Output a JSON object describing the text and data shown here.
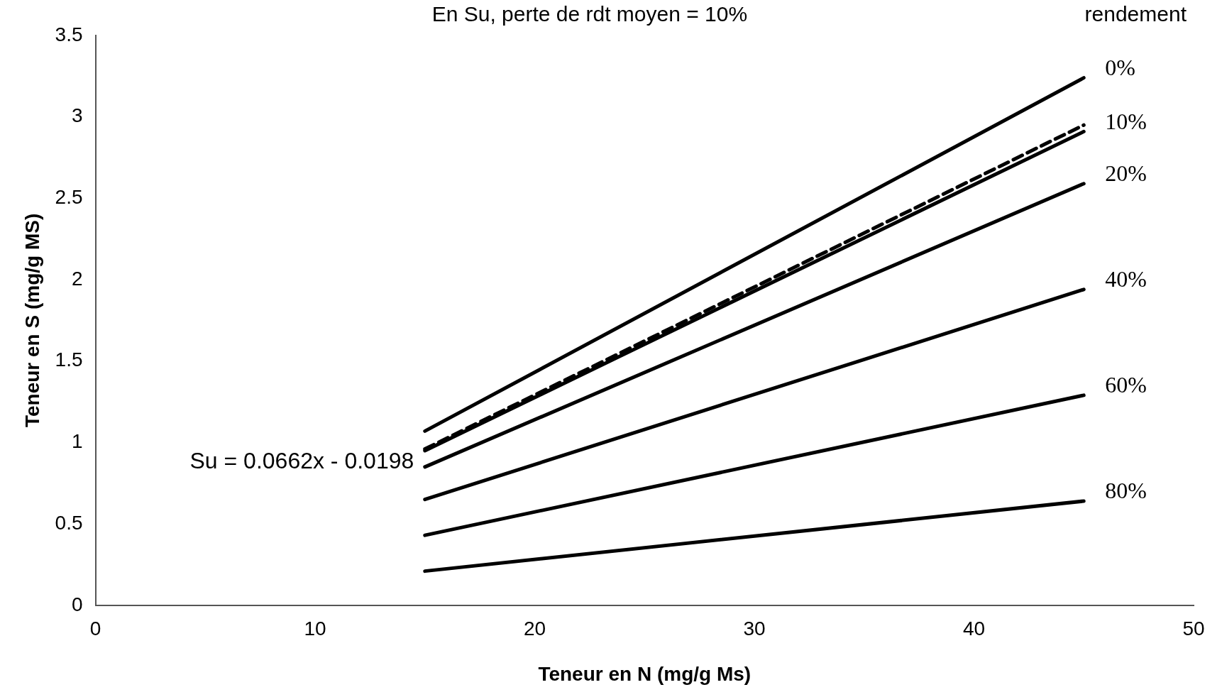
{
  "chart_data": {
    "type": "line",
    "title": "En Su, perte de rdt moyen = 10%",
    "legend_title": "rendement",
    "xlabel": "Teneur en N (mg/g Ms)",
    "ylabel": "Teneur en S (mg/g MS)",
    "x": [
      15,
      45
    ],
    "xlim": [
      0,
      50
    ],
    "xticks": [
      0,
      10,
      20,
      30,
      40,
      50
    ],
    "ylim": [
      0,
      3.5
    ],
    "yticks": [
      0,
      0.5,
      1,
      1.5,
      2,
      2.5,
      3,
      3.5
    ],
    "grid": false,
    "legend": false,
    "marker": "none",
    "line_style": "solid",
    "annotations": [
      "Su = 0.0662x - 0.0198"
    ],
    "series": [
      {
        "name": "0%",
        "color": "#000000",
        "values": [
          1.07,
          3.24
        ]
      },
      {
        "color": "#000000",
        "values": [
          0.96,
          2.95
        ],
        "line_style": "dashed"
      },
      {
        "name": "10%",
        "color": "#000000",
        "values": [
          0.95,
          2.91
        ]
      },
      {
        "name": "20%",
        "color": "#000000",
        "values": [
          0.85,
          2.59
        ]
      },
      {
        "name": "40%",
        "color": "#000000",
        "values": [
          0.65,
          1.94
        ]
      },
      {
        "name": "60%",
        "color": "#000000",
        "values": [
          0.43,
          1.29
        ]
      },
      {
        "name": "80%",
        "color": "#000000",
        "values": [
          0.21,
          0.64
        ]
      }
    ]
  }
}
